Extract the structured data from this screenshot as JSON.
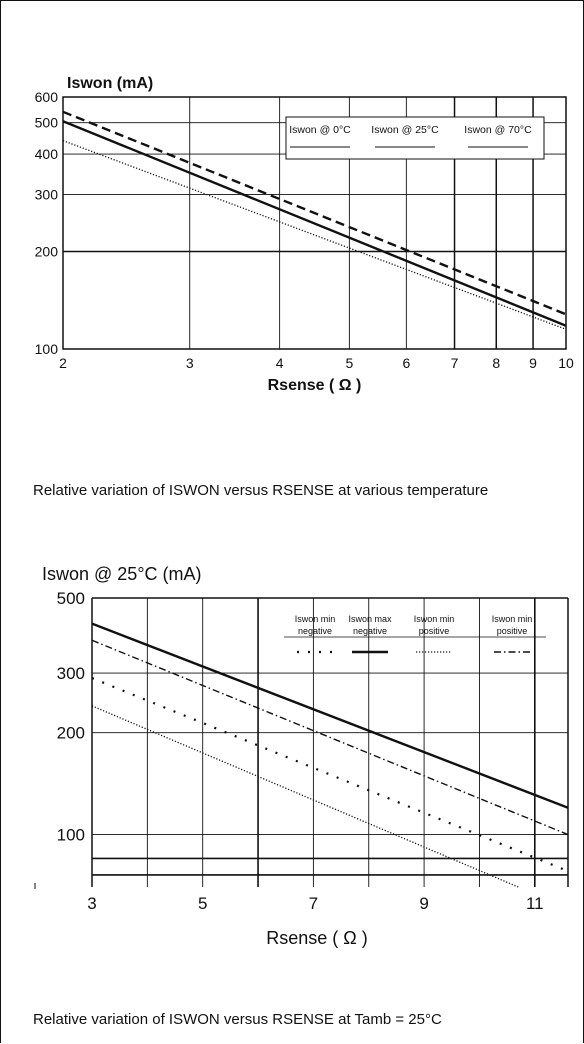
{
  "chart_data": [
    {
      "type": "line",
      "ylabel": "Iswon (mA)",
      "xlabel": "Rsense ( Ω )",
      "x_scale": "log",
      "y_scale": "log",
      "xlim": [
        2,
        10
      ],
      "ylim": [
        100,
        600
      ],
      "x_ticks": [
        "2",
        "3",
        "4",
        "5",
        "6",
        "7",
        "8",
        "9",
        "10"
      ],
      "x_tick_values": [
        2,
        3,
        4,
        5,
        6,
        7,
        8,
        9,
        10
      ],
      "y_ticks": [
        "600",
        "500",
        "400",
        "300",
        "200",
        "100"
      ],
      "y_tick_values": [
        600,
        500,
        400,
        300,
        200,
        100
      ],
      "grid": true,
      "legend_position": "top-right",
      "series": [
        {
          "name": "Iswon @ 0°C",
          "style": "dotted",
          "x": [
            2,
            10
          ],
          "y": [
            440,
            115
          ]
        },
        {
          "name": "Iswon @ 25°C",
          "style": "solid",
          "x": [
            2,
            10
          ],
          "y": [
            505,
            118
          ]
        },
        {
          "name": "Iswon @ 70°C",
          "style": "dashed",
          "x": [
            2,
            10
          ],
          "y": [
            540,
            128
          ]
        }
      ],
      "caption": "Relative variation of ISWON versus RSENSE at various temperature"
    },
    {
      "type": "line",
      "ylabel": "Iswon @ 25°C (mA)",
      "xlabel": "Rsense ( Ω )",
      "y_scale": "log",
      "xlim": [
        3,
        11.6
      ],
      "ylim": [
        70,
        500
      ],
      "x_ticks": [
        "3",
        "5",
        "7",
        "9",
        "11"
      ],
      "x_tick_values": [
        3,
        5,
        7,
        9,
        11
      ],
      "y_ticks": [
        "500",
        "300",
        "200",
        "100"
      ],
      "y_tick_values": [
        500,
        300,
        200,
        100
      ],
      "grid": true,
      "legend_position": "top-right",
      "series": [
        {
          "name": "Iswon min negative",
          "style": "sparse-dotted",
          "x": [
            3,
            11.6
          ],
          "y": [
            290,
            78
          ]
        },
        {
          "name": "Iswon max negative",
          "style": "solid",
          "x": [
            3,
            11.6
          ],
          "y": [
            420,
            120
          ]
        },
        {
          "name": "Iswon min positive",
          "style": "dotted",
          "x": [
            3,
            10.7
          ],
          "y": [
            240,
            70
          ]
        },
        {
          "name": "Iswon min positive",
          "style": "dash-dot",
          "x": [
            3,
            11.6
          ],
          "y": [
            375,
            100
          ]
        }
      ],
      "caption": "Relative variation of ISWON versus RSENSE at Tamb = 25°C"
    }
  ]
}
